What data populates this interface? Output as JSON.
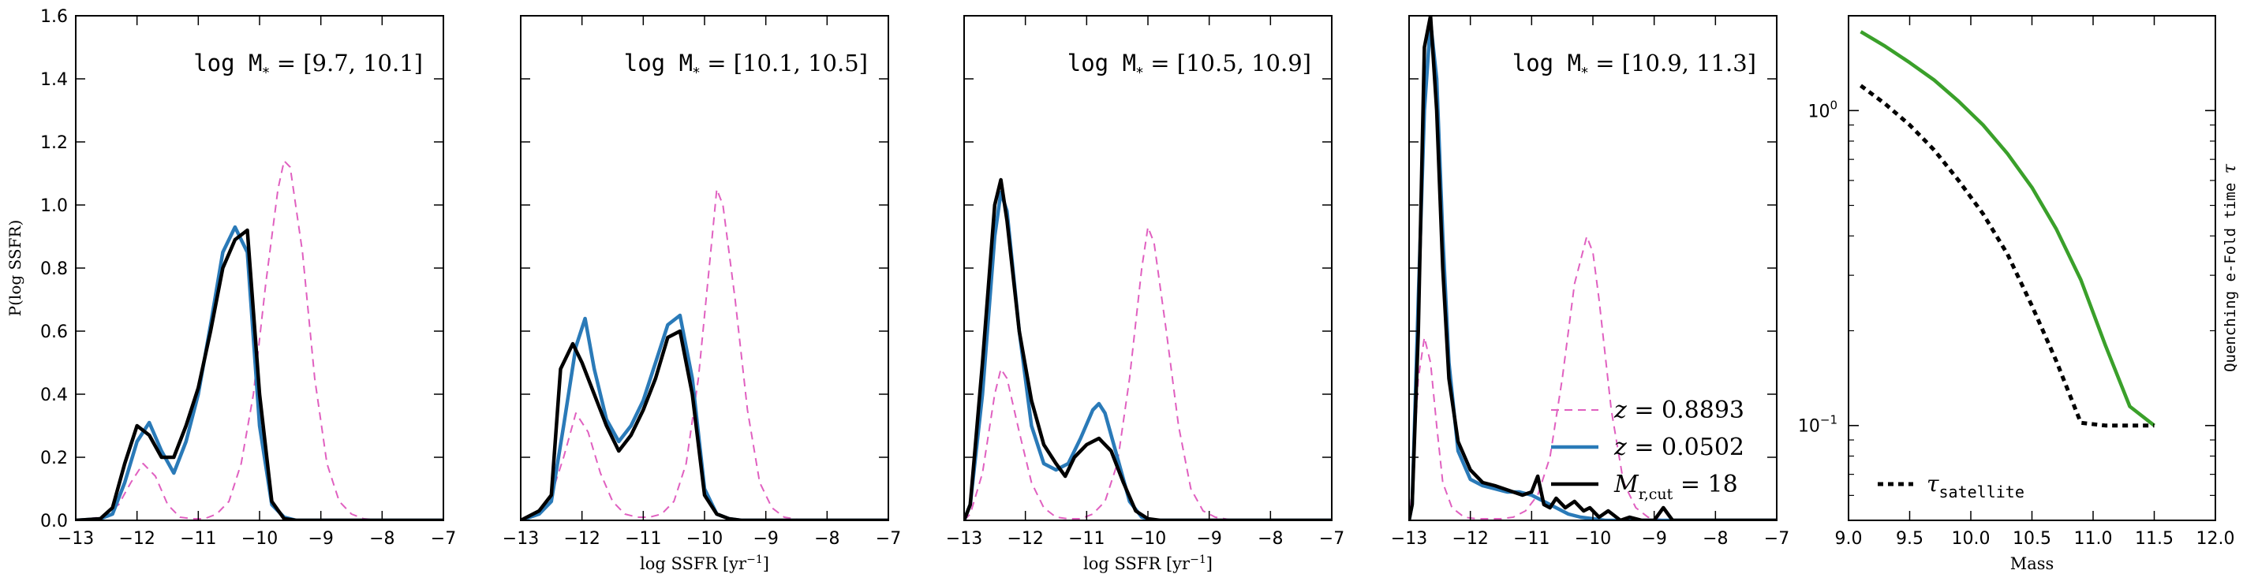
{
  "figure": {
    "colors": {
      "z_high": "#e060c0",
      "z_low": "#2a7ab8",
      "mcut": "#000000",
      "tau_green": "#3aa02a",
      "tau_sat": "#000000"
    }
  },
  "chart_data": [
    {
      "type": "line",
      "title": "",
      "annotation": "log M* = [9.7, 10.1]",
      "annotation_parts": {
        "prefix": "log M",
        "sub": "*",
        "range": "= [9.7, 10.1]"
      },
      "xlabel": "",
      "ylabel": "P(log SSFR)",
      "xlim": [
        -13,
        -7
      ],
      "ylim": [
        0,
        1.6
      ],
      "xticks": [
        -13,
        -12,
        -11,
        -10,
        -9,
        -8,
        -7
      ],
      "xtick_labels": [
        "−13",
        "−12",
        "−11",
        "−10",
        "−9",
        "−8",
        "−7"
      ],
      "yticks": [
        0,
        0.2,
        0.4,
        0.6,
        0.8,
        1.0,
        1.2,
        1.4,
        1.6
      ],
      "ytick_labels": [
        "0.0",
        "0.2",
        "0.4",
        "0.6",
        "0.8",
        "1.0",
        "1.2",
        "1.4",
        "1.6"
      ],
      "series": [
        {
          "key": "z_high",
          "style": "dashed",
          "x": [
            -13,
            -12.6,
            -12.3,
            -12.1,
            -11.9,
            -11.7,
            -11.5,
            -11.3,
            -11.1,
            -10.9,
            -10.7,
            -10.5,
            -10.3,
            -10.1,
            -9.9,
            -9.7,
            -9.6,
            -9.5,
            -9.3,
            -9.1,
            -8.9,
            -8.7,
            -8.5,
            -8.3,
            -8,
            -7.5,
            -7
          ],
          "y": [
            0,
            0.01,
            0.05,
            0.12,
            0.18,
            0.14,
            0.05,
            0.01,
            0.005,
            0.005,
            0.02,
            0.06,
            0.18,
            0.4,
            0.75,
            1.05,
            1.14,
            1.12,
            0.85,
            0.45,
            0.18,
            0.06,
            0.02,
            0.005,
            0,
            0,
            0
          ]
        },
        {
          "key": "z_low",
          "style": "solid",
          "x": [
            -13,
            -12.6,
            -12.4,
            -12.2,
            -12,
            -11.8,
            -11.6,
            -11.4,
            -11.2,
            -11,
            -10.8,
            -10.6,
            -10.4,
            -10.2,
            -10,
            -9.8,
            -9.6,
            -9.4,
            -9,
            -8,
            -7
          ],
          "y": [
            0,
            0.005,
            0.02,
            0.12,
            0.25,
            0.31,
            0.22,
            0.15,
            0.25,
            0.4,
            0.62,
            0.85,
            0.93,
            0.85,
            0.3,
            0.05,
            0.01,
            0,
            0,
            0,
            0
          ]
        },
        {
          "key": "mcut",
          "style": "solid",
          "x": [
            -13,
            -12.6,
            -12.4,
            -12.2,
            -12,
            -11.8,
            -11.6,
            -11.4,
            -11.2,
            -11,
            -10.8,
            -10.6,
            -10.4,
            -10.2,
            -10,
            -9.8,
            -9.6,
            -9.4,
            -9,
            -8,
            -7
          ],
          "y": [
            0,
            0.005,
            0.04,
            0.18,
            0.3,
            0.27,
            0.2,
            0.2,
            0.3,
            0.42,
            0.6,
            0.8,
            0.89,
            0.92,
            0.4,
            0.06,
            0.005,
            0,
            0,
            0,
            0
          ]
        }
      ]
    },
    {
      "type": "line",
      "title": "",
      "annotation": "log M* = [10.1, 10.5]",
      "annotation_parts": {
        "prefix": "log M",
        "sub": "*",
        "range": "= [10.1, 10.5]"
      },
      "xlabel": "log SSFR [yr⁻¹]",
      "xlabel_parts": {
        "text": "log SSFR [yr",
        "sup": "−1",
        "close": "]"
      },
      "ylabel": "",
      "xlim": [
        -13,
        -7
      ],
      "ylim": [
        0,
        1.6
      ],
      "xticks": [
        -13,
        -12,
        -11,
        -10,
        -9,
        -8,
        -7
      ],
      "xtick_labels": [
        "−13",
        "−12",
        "−11",
        "−10",
        "−9",
        "−8",
        "−7"
      ],
      "series": [
        {
          "key": "z_high",
          "style": "dashed",
          "x": [
            -13,
            -12.7,
            -12.5,
            -12.3,
            -12.1,
            -11.9,
            -11.7,
            -11.5,
            -11.3,
            -11.1,
            -10.9,
            -10.7,
            -10.5,
            -10.3,
            -10.1,
            -9.9,
            -9.8,
            -9.7,
            -9.5,
            -9.3,
            -9.1,
            -8.9,
            -8.7,
            -8.4,
            -8,
            -7.5,
            -7
          ],
          "y": [
            0,
            0.02,
            0.08,
            0.2,
            0.34,
            0.28,
            0.15,
            0.06,
            0.02,
            0.01,
            0.01,
            0.02,
            0.06,
            0.18,
            0.45,
            0.85,
            1.05,
            1.0,
            0.7,
            0.35,
            0.12,
            0.04,
            0.01,
            0,
            0,
            0,
            0
          ]
        },
        {
          "key": "z_low",
          "style": "solid",
          "x": [
            -13,
            -12.7,
            -12.5,
            -12.3,
            -12.1,
            -11.95,
            -11.8,
            -11.6,
            -11.4,
            -11.2,
            -11,
            -10.8,
            -10.6,
            -10.4,
            -10.2,
            -10,
            -9.8,
            -9.6,
            -9.4,
            -9,
            -8,
            -7
          ],
          "y": [
            0,
            0.02,
            0.06,
            0.3,
            0.55,
            0.64,
            0.48,
            0.32,
            0.25,
            0.3,
            0.38,
            0.5,
            0.62,
            0.65,
            0.45,
            0.1,
            0.02,
            0.005,
            0,
            0,
            0,
            0
          ]
        },
        {
          "key": "mcut",
          "style": "solid",
          "x": [
            -13,
            -12.7,
            -12.5,
            -12.35,
            -12.15,
            -12,
            -11.8,
            -11.6,
            -11.4,
            -11.2,
            -11,
            -10.8,
            -10.6,
            -10.4,
            -10.2,
            -10,
            -9.8,
            -9.6,
            -9.4,
            -9,
            -8,
            -7
          ],
          "y": [
            0,
            0.03,
            0.08,
            0.48,
            0.56,
            0.5,
            0.4,
            0.3,
            0.22,
            0.27,
            0.35,
            0.45,
            0.58,
            0.6,
            0.4,
            0.08,
            0.02,
            0.005,
            0,
            0,
            0,
            0
          ]
        }
      ]
    },
    {
      "type": "line",
      "title": "",
      "annotation": "log M* = [10.5, 10.9]",
      "annotation_parts": {
        "prefix": "log M",
        "sub": "*",
        "range": "= [10.5, 10.9]"
      },
      "xlabel": "log SSFR [yr⁻¹]",
      "xlabel_parts": {
        "text": "log SSFR [yr",
        "sup": "−1",
        "close": "]"
      },
      "ylabel": "",
      "xlim": [
        -13,
        -7
      ],
      "ylim": [
        0,
        1.6
      ],
      "xticks": [
        -13,
        -12,
        -11,
        -10,
        -9,
        -8,
        -7
      ],
      "xtick_labels": [
        "−13",
        "−12",
        "−11",
        "−10",
        "−9",
        "−8",
        "−7"
      ],
      "series": [
        {
          "key": "z_high",
          "style": "dashed",
          "x": [
            -13,
            -12.9,
            -12.7,
            -12.5,
            -12.4,
            -12.3,
            -12.1,
            -11.9,
            -11.7,
            -11.5,
            -11.3,
            -11.1,
            -10.9,
            -10.7,
            -10.5,
            -10.3,
            -10.1,
            -10,
            -9.9,
            -9.7,
            -9.5,
            -9.3,
            -9.1,
            -8.9,
            -8.6,
            -8,
            -7
          ],
          "y": [
            0,
            0.02,
            0.15,
            0.4,
            0.48,
            0.45,
            0.28,
            0.12,
            0.04,
            0.01,
            0.005,
            0.005,
            0.02,
            0.06,
            0.18,
            0.45,
            0.8,
            0.93,
            0.88,
            0.6,
            0.3,
            0.1,
            0.03,
            0.01,
            0,
            0,
            0
          ]
        },
        {
          "key": "z_low",
          "style": "solid",
          "x": [
            -13,
            -12.9,
            -12.7,
            -12.5,
            -12.4,
            -12.3,
            -12.1,
            -11.9,
            -11.7,
            -11.5,
            -11.3,
            -11.1,
            -10.9,
            -10.8,
            -10.7,
            -10.5,
            -10.3,
            -10.1,
            -9.9,
            -9.5,
            -9,
            -8,
            -7
          ],
          "y": [
            0,
            0.05,
            0.4,
            0.9,
            1.04,
            0.98,
            0.6,
            0.3,
            0.18,
            0.16,
            0.18,
            0.26,
            0.35,
            0.37,
            0.34,
            0.2,
            0.06,
            0.01,
            0,
            0,
            0,
            0,
            0
          ]
        },
        {
          "key": "mcut",
          "style": "solid",
          "x": [
            -13,
            -12.9,
            -12.7,
            -12.5,
            -12.4,
            -12.3,
            -12.1,
            -11.9,
            -11.7,
            -11.5,
            -11.35,
            -11.2,
            -11,
            -10.8,
            -10.6,
            -10.4,
            -10.2,
            -10,
            -9.8,
            -9.5,
            -9,
            -8,
            -7
          ],
          "y": [
            0,
            0.05,
            0.5,
            1.0,
            1.08,
            0.95,
            0.6,
            0.38,
            0.24,
            0.18,
            0.14,
            0.2,
            0.24,
            0.26,
            0.22,
            0.12,
            0.03,
            0.005,
            0,
            0,
            0,
            0,
            0
          ]
        }
      ]
    },
    {
      "type": "line",
      "title": "",
      "annotation": "log M* = [10.9, 11.3]",
      "annotation_parts": {
        "prefix": "log M",
        "sub": "*",
        "range": "= [10.9, 11.3]"
      },
      "xlabel": "",
      "ylabel": "",
      "xlim": [
        -13,
        -7
      ],
      "ylim": [
        0,
        1.6
      ],
      "xticks": [
        -13,
        -12,
        -11,
        -10,
        -9,
        -8,
        -7
      ],
      "xtick_labels": [
        "−13",
        "−12",
        "−11",
        "−10",
        "−9",
        "−8",
        "−7"
      ],
      "legend_position": "lower-right",
      "legend": [
        {
          "key": "z_high",
          "style": "dashed",
          "label_prefix": "z",
          "label_rest": " = 0.8893",
          "label": "z = 0.8893"
        },
        {
          "key": "z_low",
          "style": "solid",
          "label_prefix": "z",
          "label_rest": " = 0.0502",
          "label": "z = 0.0502"
        },
        {
          "key": "mcut",
          "style": "solid",
          "label_prefix": "M",
          "label_sub": "r,cut",
          "label_rest": " = 18",
          "label": "M r,cut = 18"
        }
      ],
      "series": [
        {
          "key": "z_high",
          "style": "dashed",
          "x": [
            -13,
            -12.95,
            -12.85,
            -12.75,
            -12.65,
            -12.55,
            -12.45,
            -12.3,
            -12.1,
            -11.9,
            -11.7,
            -11.5,
            -11.3,
            -11.1,
            -10.9,
            -10.7,
            -10.5,
            -10.3,
            -10.1,
            -10,
            -9.9,
            -9.7,
            -9.5,
            -9.3,
            -9.1,
            -8.8,
            -8,
            -7
          ],
          "y": [
            0,
            0.1,
            0.45,
            0.58,
            0.5,
            0.3,
            0.12,
            0.04,
            0.01,
            0.005,
            0.005,
            0.005,
            0.01,
            0.03,
            0.08,
            0.2,
            0.45,
            0.75,
            0.9,
            0.85,
            0.7,
            0.35,
            0.12,
            0.04,
            0.01,
            0,
            0,
            0
          ]
        },
        {
          "key": "z_low",
          "style": "solid",
          "x": [
            -13,
            -12.95,
            -12.85,
            -12.75,
            -12.65,
            -12.55,
            -12.45,
            -12.35,
            -12.2,
            -12,
            -11.8,
            -11.6,
            -11.4,
            -11.2,
            -11,
            -10.8,
            -10.6,
            -10.4,
            -10.2,
            -10,
            -9.8,
            -9.5,
            -9,
            -8,
            -7
          ],
          "y": [
            0,
            0.05,
            0.7,
            1.3,
            1.58,
            1.4,
            0.9,
            0.5,
            0.22,
            0.13,
            0.11,
            0.1,
            0.09,
            0.09,
            0.08,
            0.06,
            0.04,
            0.02,
            0.01,
            0.005,
            0,
            0,
            0,
            0,
            0
          ]
        },
        {
          "key": "mcut",
          "style": "solid",
          "x": [
            -13,
            -12.95,
            -12.85,
            -12.75,
            -12.65,
            -12.55,
            -12.45,
            -12.35,
            -12.2,
            -12.0,
            -11.8,
            -11.6,
            -11.45,
            -11.3,
            -11.15,
            -11.0,
            -10.9,
            -10.8,
            -10.7,
            -10.6,
            -10.45,
            -10.3,
            -10.15,
            -10.05,
            -9.9,
            -9.75,
            -9.55,
            -9.4,
            -9.2,
            -9.0,
            -8.85,
            -8.7,
            -8,
            -7
          ],
          "y": [
            0,
            0.05,
            0.6,
            1.5,
            1.6,
            1.3,
            0.8,
            0.45,
            0.25,
            0.16,
            0.12,
            0.11,
            0.1,
            0.09,
            0.08,
            0.09,
            0.14,
            0.05,
            0.04,
            0.07,
            0.04,
            0.06,
            0.03,
            0.04,
            0.01,
            0.03,
            0.0,
            0.01,
            0.0,
            0.0,
            0.04,
            0.0,
            0,
            0
          ]
        }
      ]
    },
    {
      "type": "line",
      "title": "",
      "xlabel": "Mass",
      "ylabel": "Quenching e-Fold time τ",
      "ylabel_parts": {
        "text": "Quenching e-Fold time ",
        "symbol": "τ"
      },
      "xlim": [
        9,
        12
      ],
      "ylim": [
        0.05,
        2.0
      ],
      "yscale": "log",
      "xticks": [
        9.0,
        9.5,
        10.0,
        10.5,
        11.0,
        11.5,
        12.0
      ],
      "xtick_labels": [
        "9.0",
        "9.5",
        "10.0",
        "10.5",
        "11.0",
        "11.5",
        "12.0"
      ],
      "yticks": [
        0.1,
        1.0
      ],
      "ytick_labels": [
        {
          "base": "10",
          "exp": "−1"
        },
        {
          "base": "10",
          "exp": "0"
        }
      ],
      "legend_position": "lower-left",
      "legend": [
        {
          "key": "tau_sat",
          "style": "dotted",
          "label_prefix": "τ",
          "label_sub": "satellite",
          "label": "τ satellite"
        }
      ],
      "series": [
        {
          "key": "tau_green",
          "style": "solid",
          "x": [
            9.1,
            9.3,
            9.5,
            9.7,
            9.9,
            10.1,
            10.3,
            10.5,
            10.7,
            10.9,
            11.1,
            11.3,
            11.5
          ],
          "y": [
            1.78,
            1.6,
            1.42,
            1.25,
            1.07,
            0.9,
            0.73,
            0.57,
            0.42,
            0.29,
            0.18,
            0.115,
            0.1
          ]
        },
        {
          "key": "tau_sat",
          "style": "dotted",
          "x": [
            9.1,
            9.3,
            9.5,
            9.7,
            9.9,
            10.1,
            10.3,
            10.5,
            10.7,
            10.9,
            11.1,
            11.3,
            11.5
          ],
          "y": [
            1.2,
            1.05,
            0.9,
            0.75,
            0.6,
            0.47,
            0.35,
            0.24,
            0.16,
            0.102,
            0.1,
            0.1,
            0.1
          ]
        }
      ]
    }
  ]
}
